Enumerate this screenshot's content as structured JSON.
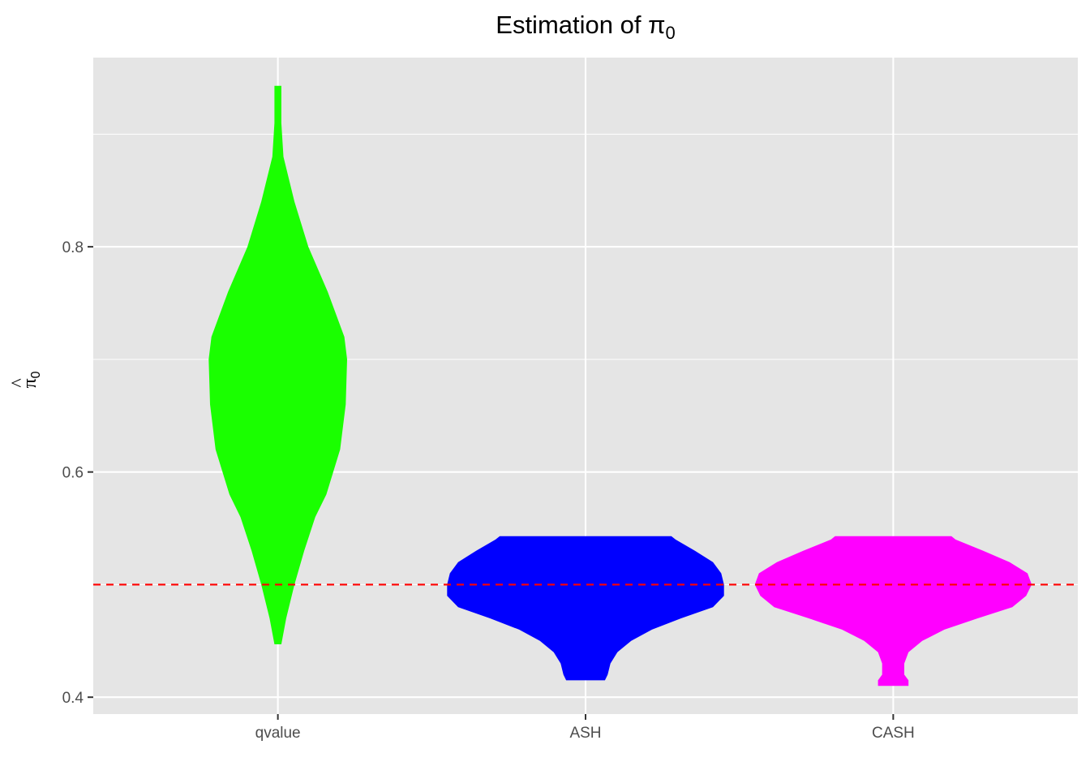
{
  "chart_data": {
    "type": "violin",
    "title": "Estimation of π",
    "title_subscript": "0",
    "xlabel": "",
    "ylabel": "π",
    "ylabel_hat": "^",
    "ylabel_subscript": "0",
    "categories": [
      "qvalue",
      "ASH",
      "CASH"
    ],
    "yticks": [
      "0.4",
      "0.6",
      "0.8"
    ],
    "ylim": [
      0.385,
      0.968
    ],
    "reference_line": {
      "y": 0.5,
      "color": "#ff0000",
      "style": "dashed"
    },
    "panel_background": "#e5e5e5",
    "grid": true,
    "legend": "none",
    "series": [
      {
        "category": "qvalue",
        "color": "#1aff00",
        "range": [
          0.447,
          0.943
        ],
        "density_profile": [
          [
            0.447,
            0.025
          ],
          [
            0.47,
            0.06
          ],
          [
            0.5,
            0.12
          ],
          [
            0.53,
            0.19
          ],
          [
            0.56,
            0.27
          ],
          [
            0.58,
            0.35
          ],
          [
            0.62,
            0.45
          ],
          [
            0.66,
            0.49
          ],
          [
            0.7,
            0.5
          ],
          [
            0.72,
            0.48
          ],
          [
            0.76,
            0.36
          ],
          [
            0.8,
            0.22
          ],
          [
            0.84,
            0.12
          ],
          [
            0.88,
            0.04
          ],
          [
            0.91,
            0.025
          ],
          [
            0.943,
            0.025
          ]
        ]
      },
      {
        "category": "ASH",
        "color": "#0000ff",
        "range": [
          0.415,
          0.543
        ],
        "density_profile": [
          [
            0.415,
            0.14
          ],
          [
            0.42,
            0.16
          ],
          [
            0.43,
            0.18
          ],
          [
            0.44,
            0.23
          ],
          [
            0.45,
            0.33
          ],
          [
            0.46,
            0.48
          ],
          [
            0.47,
            0.69
          ],
          [
            0.48,
            0.92
          ],
          [
            0.49,
            1.0
          ],
          [
            0.5,
            1.0
          ],
          [
            0.51,
            0.98
          ],
          [
            0.52,
            0.92
          ],
          [
            0.53,
            0.79
          ],
          [
            0.54,
            0.65
          ],
          [
            0.543,
            0.62
          ]
        ]
      },
      {
        "category": "CASH",
        "color": "#ff00ff",
        "range": [
          0.41,
          0.543
        ],
        "density_profile": [
          [
            0.41,
            0.11
          ],
          [
            0.415,
            0.11
          ],
          [
            0.42,
            0.08
          ],
          [
            0.43,
            0.08
          ],
          [
            0.44,
            0.11
          ],
          [
            0.45,
            0.21
          ],
          [
            0.46,
            0.37
          ],
          [
            0.47,
            0.61
          ],
          [
            0.48,
            0.86
          ],
          [
            0.49,
            0.96
          ],
          [
            0.5,
            1.0
          ],
          [
            0.51,
            0.97
          ],
          [
            0.52,
            0.84
          ],
          [
            0.53,
            0.65
          ],
          [
            0.54,
            0.45
          ],
          [
            0.543,
            0.42
          ]
        ]
      }
    ]
  }
}
